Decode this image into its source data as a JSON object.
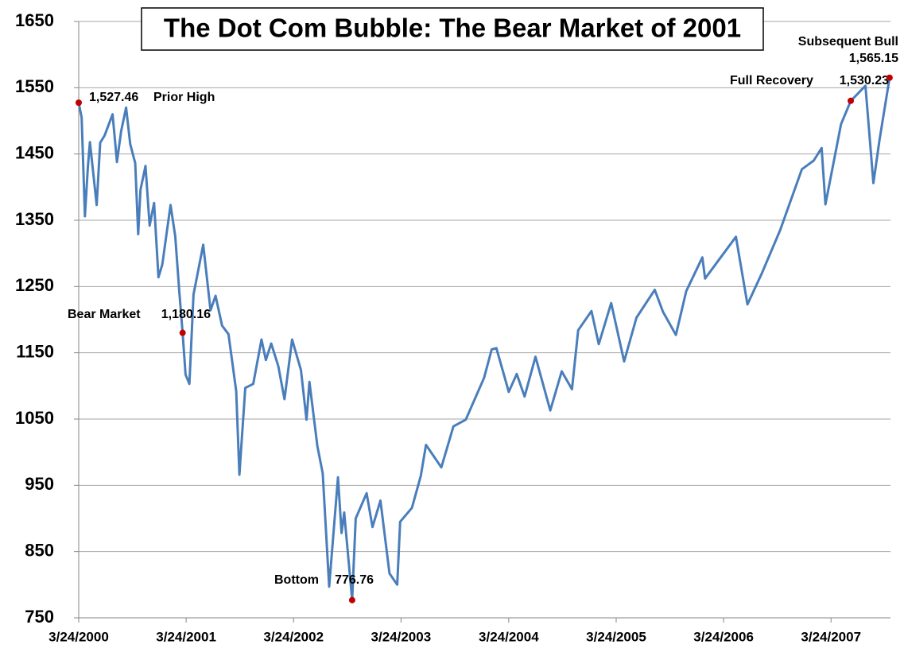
{
  "chart_data": {
    "type": "line",
    "title": "The Dot Com Bubble: The Bear Market of 2001",
    "color": "#4a7ebb",
    "marker_color": "#c00000",
    "grid": true,
    "ylim": [
      750,
      1650
    ],
    "yticks": [
      750,
      850,
      950,
      1050,
      1150,
      1250,
      1350,
      1450,
      1550,
      1650
    ],
    "xlim": [
      "2000-03-24",
      "2007-10-12"
    ],
    "xticks": [
      {
        "value": "2000-03-24",
        "label": "3/24/2000"
      },
      {
        "value": "2001-03-24",
        "label": "3/24/2001"
      },
      {
        "value": "2002-03-24",
        "label": "3/24/2002"
      },
      {
        "value": "2003-03-24",
        "label": "3/24/2003"
      },
      {
        "value": "2004-03-24",
        "label": "3/24/2004"
      },
      {
        "value": "2005-03-24",
        "label": "3/24/2005"
      },
      {
        "value": "2006-03-24",
        "label": "3/24/2006"
      },
      {
        "value": "2007-03-24",
        "label": "3/24/2007"
      }
    ],
    "x": [
      "2000-03-24",
      "2000-04-03",
      "2000-04-14",
      "2000-04-24",
      "2000-05-01",
      "2000-05-24",
      "2000-06-05",
      "2000-06-20",
      "2000-07-17",
      "2000-08-01",
      "2000-08-15",
      "2000-09-01",
      "2000-09-15",
      "2000-10-02",
      "2000-10-12",
      "2000-10-20",
      "2000-11-06",
      "2000-11-20",
      "2000-12-05",
      "2000-12-20",
      "2001-01-02",
      "2001-01-30",
      "2001-02-15",
      "2001-03-01",
      "2001-03-12",
      "2001-03-22",
      "2001-04-04",
      "2001-04-18",
      "2001-05-21",
      "2001-06-15",
      "2001-07-02",
      "2001-07-24",
      "2001-08-15",
      "2001-09-10",
      "2001-09-21",
      "2001-10-11",
      "2001-11-07",
      "2001-12-05",
      "2001-12-20",
      "2002-01-07",
      "2002-01-31",
      "2002-02-21",
      "2002-03-19",
      "2002-04-18",
      "2002-05-07",
      "2002-05-17",
      "2002-06-13",
      "2002-07-01",
      "2002-07-23",
      "2002-08-22",
      "2002-09-03",
      "2002-09-12",
      "2002-10-09",
      "2002-10-21",
      "2002-11-27",
      "2002-12-17",
      "2003-01-13",
      "2003-02-13",
      "2003-03-11",
      "2003-03-21",
      "2003-04-30",
      "2003-05-30",
      "2003-06-17",
      "2003-08-08",
      "2003-09-18",
      "2003-10-30",
      "2003-12-31",
      "2004-01-26",
      "2004-02-11",
      "2004-03-24",
      "2004-04-20",
      "2004-05-17",
      "2004-06-23",
      "2004-08-12",
      "2004-09-20",
      "2004-10-25",
      "2004-11-15",
      "2004-12-30",
      "2005-01-24",
      "2005-03-07",
      "2005-04-20",
      "2005-06-01",
      "2005-08-02",
      "2005-08-30",
      "2005-10-13",
      "2005-11-17",
      "2006-01-11",
      "2006-01-20",
      "2006-05-05",
      "2006-06-13",
      "2006-08-01",
      "2006-10-02",
      "2006-12-15",
      "2007-01-24",
      "2007-02-20",
      "2007-03-05",
      "2007-04-27",
      "2007-05-30",
      "2007-07-19",
      "2007-08-15",
      "2007-09-05",
      "2007-10-09"
    ],
    "values": [
      1527,
      1505,
      1356,
      1430,
      1468,
      1373,
      1467,
      1478,
      1510,
      1438,
      1484,
      1520,
      1465,
      1436,
      1329,
      1396,
      1432,
      1342,
      1376,
      1264,
      1283,
      1373,
      1326,
      1241,
      1180,
      1117,
      1103,
      1238,
      1313,
      1214,
      1236,
      1191,
      1178,
      1092,
      966,
      1097,
      1103,
      1170,
      1139,
      1164,
      1130,
      1080,
      1170,
      1124,
      1049,
      1106,
      1009,
      968,
      797,
      962,
      878,
      909,
      777,
      900,
      938,
      887,
      927,
      817,
      800,
      895,
      916,
      964,
      1011,
      977,
      1039,
      1049,
      1112,
      1155,
      1157,
      1091,
      1118,
      1084,
      1144,
      1063,
      1122,
      1095,
      1184,
      1213,
      1163,
      1225,
      1137,
      1203,
      1245,
      1212,
      1177,
      1243,
      1294,
      1262,
      1325,
      1223,
      1270,
      1335,
      1427,
      1440,
      1459,
      1374,
      1495,
      1530,
      1553,
      1406,
      1472,
      1565
    ],
    "annotations": [
      {
        "label": "Prior High",
        "x": "2000-03-24",
        "value": 1527.46,
        "value_label": "1,527.46"
      },
      {
        "label": "Bear Market",
        "x": "2001-03-12",
        "value": 1180.16,
        "value_label": "1,180.16"
      },
      {
        "label": "Bottom",
        "x": "2002-10-09",
        "value": 776.76,
        "value_label": "776.76"
      },
      {
        "label": "Full Recovery",
        "x": "2007-05-30",
        "value": 1530.23,
        "value_label": "1,530.23"
      },
      {
        "label": "Subsequent Bull",
        "x": "2007-10-09",
        "value": 1565.15,
        "value_label": "1,565.15"
      }
    ]
  }
}
